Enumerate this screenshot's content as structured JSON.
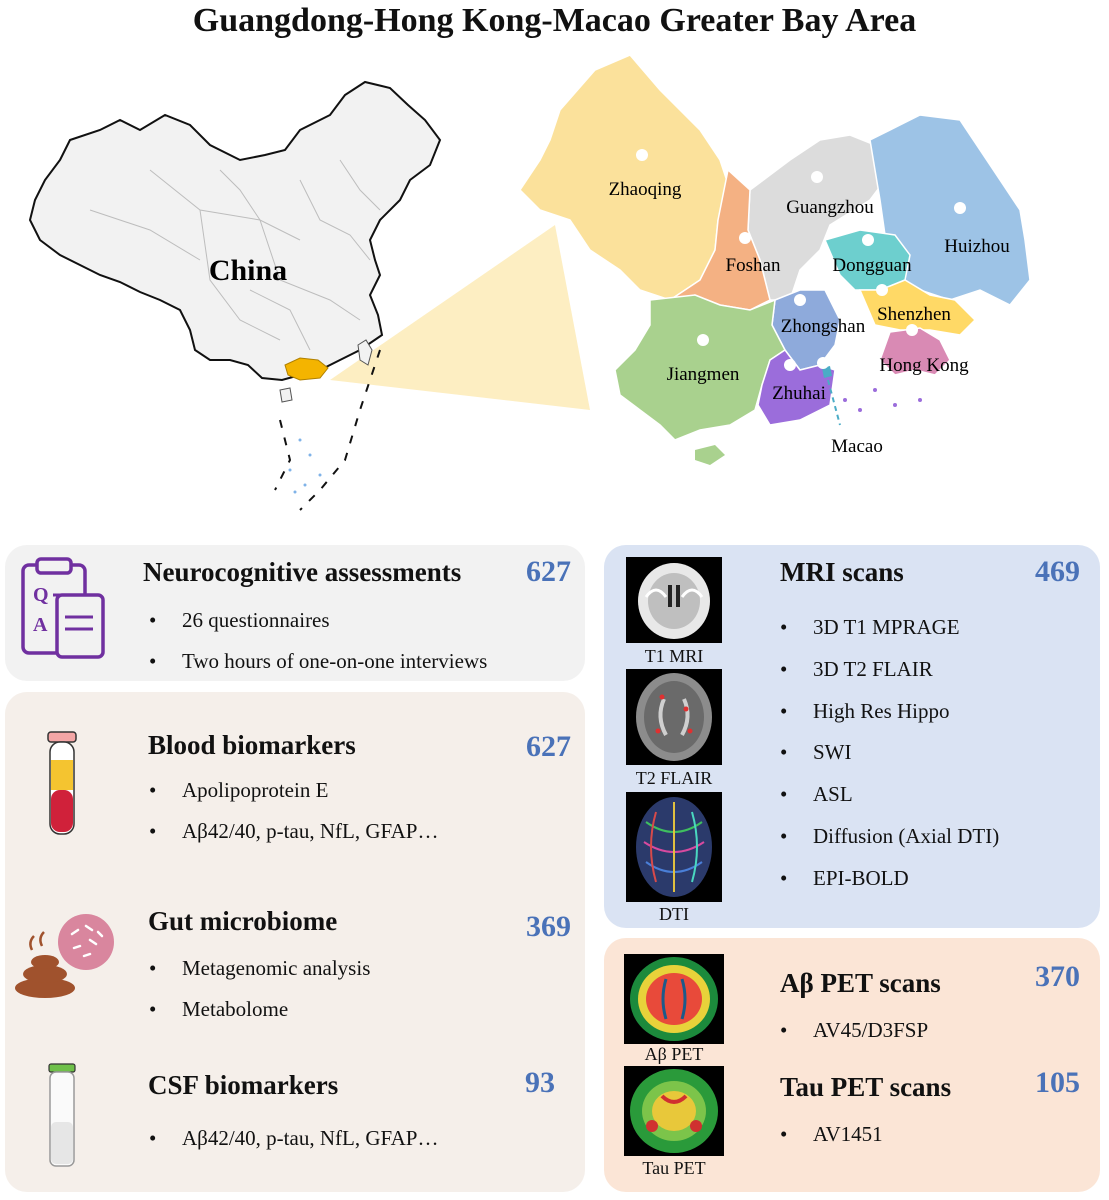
{
  "title": "Guangdong-Hong Kong-Macao Greater Bay Area",
  "map": {
    "country_label": "China",
    "cities": [
      {
        "name": "Zhaoqing",
        "color": "#fbe19b"
      },
      {
        "name": "Guangzhou",
        "color": "#dcdcdc"
      },
      {
        "name": "Huizhou",
        "color": "#9dc3e6"
      },
      {
        "name": "Foshan",
        "color": "#f4b183"
      },
      {
        "name": "Dongguan",
        "color": "#6dcfce"
      },
      {
        "name": "Shenzhen",
        "color": "#ffd966"
      },
      {
        "name": "Zhongshan",
        "color": "#8eaadb"
      },
      {
        "name": "Hong Kong",
        "color": "#d98ab4"
      },
      {
        "name": "Jiangmen",
        "color": "#a9d18e"
      },
      {
        "name": "Zhuhai",
        "color": "#9b6ddb"
      },
      {
        "name": "Macao",
        "color": "#4bacc6"
      }
    ]
  },
  "panels": {
    "neuro": {
      "title": "Neurocognitive assessments",
      "count": "627",
      "items": [
        "26 questionnaires",
        "Two hours of one-on-one interviews"
      ]
    },
    "blood": {
      "title": "Blood biomarkers",
      "count": "627",
      "items": [
        "Apolipoprotein E",
        "Aβ42/40, p-tau, NfL, GFAP…"
      ]
    },
    "gut": {
      "title": "Gut microbiome",
      "count": "369",
      "items": [
        "Metagenomic analysis",
        "Metabolome"
      ]
    },
    "csf": {
      "title": "CSF biomarkers",
      "count": "93",
      "items": [
        "Aβ42/40, p-tau, NfL, GFAP…"
      ]
    },
    "mri": {
      "title": "MRI scans",
      "count": "469",
      "items": [
        "3D T1 MPRAGE",
        "3D T2 FLAIR",
        "High Res Hippo",
        "SWI",
        "ASL",
        "Diffusion (Axial DTI)",
        "EPI-BOLD"
      ],
      "images": [
        "T1 MRI",
        "T2 FLAIR",
        "DTI"
      ]
    },
    "abeta_pet": {
      "title": "Aβ PET scans",
      "count": "370",
      "items": [
        "AV45/D3FSP"
      ],
      "image": "Aβ PET"
    },
    "tau_pet": {
      "title": "Tau PET scans",
      "count": "105",
      "items": [
        "AV1451"
      ],
      "image": "Tau PET"
    }
  },
  "colors": {
    "count": "#4a72b8",
    "panel_gray": "#f2f2f2",
    "panel_beige": "#f5efea",
    "panel_blue": "#dae3f3",
    "panel_peach": "#fbe5d6",
    "accent_purple": "#7030a0"
  }
}
